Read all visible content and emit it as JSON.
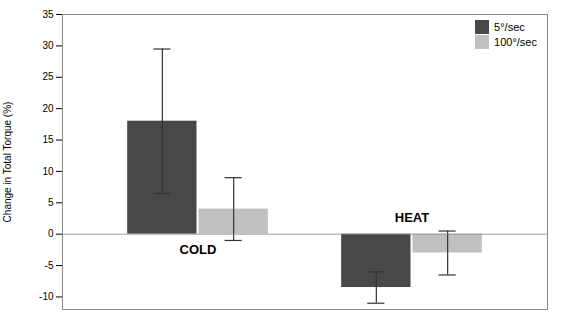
{
  "chart_data": {
    "type": "bar",
    "categories": [
      "COLD",
      "HEAT"
    ],
    "series": [
      {
        "name": "5°/sec",
        "color": "#484848",
        "values": [
          18.0,
          -8.5
        ],
        "errors": [
          11.5,
          2.5
        ]
      },
      {
        "name": "100°/sec",
        "color": "#c0c0c0",
        "values": [
          4.0,
          -3.0
        ],
        "errors": [
          5.0,
          3.5
        ]
      }
    ],
    "ylabel": "Change in Total Torque (%)",
    "ylim": [
      -12,
      35
    ],
    "yticks": [
      -10,
      -5,
      0,
      5,
      10,
      15,
      20,
      25,
      30,
      35
    ],
    "legend": "upper right",
    "grid": false,
    "tick_labels": "y"
  }
}
